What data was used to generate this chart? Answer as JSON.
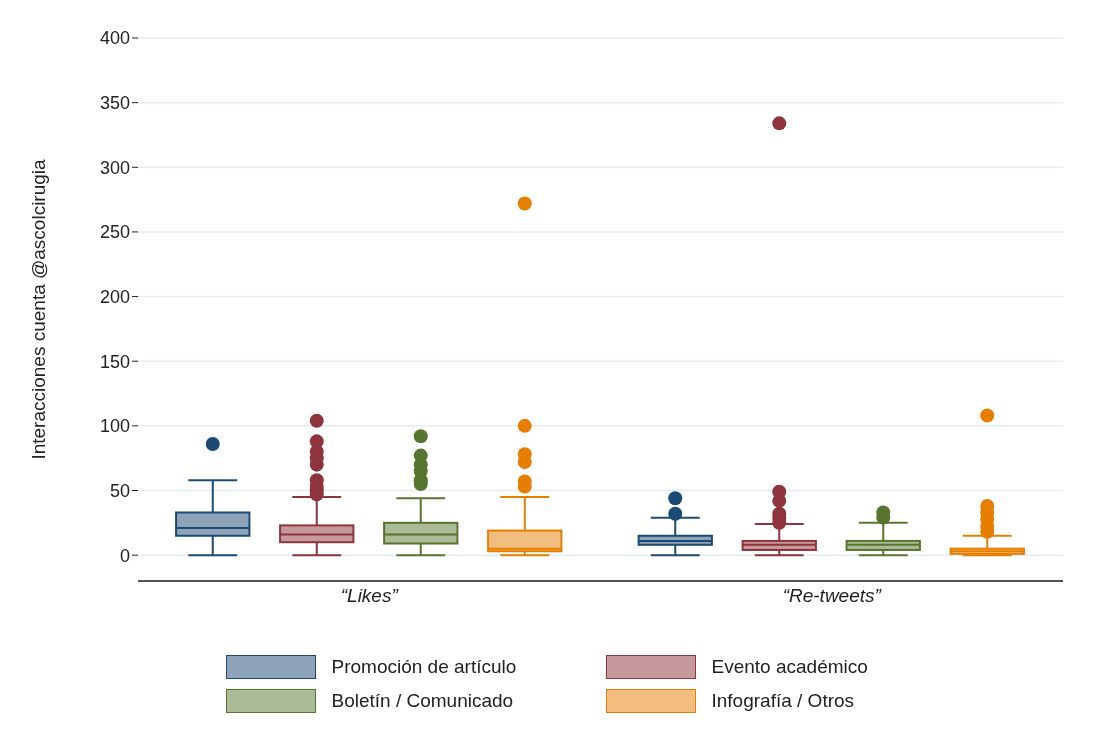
{
  "chart_data": {
    "type": "box",
    "ylabel": "Interacciones cuenta @ascolcirugia",
    "categories": [
      "“Likes”",
      "“Re-tweets”"
    ],
    "ylim": [
      -20,
      400
    ],
    "yticks": [
      0,
      50,
      100,
      150,
      200,
      250,
      300,
      350,
      400
    ],
    "grid": "y",
    "legend": "bottom",
    "series": [
      {
        "name": "Promoción de artículo",
        "color": "#1b4a72",
        "boxes": [
          {
            "low": 0,
            "q1": 15,
            "median": 21,
            "q3": 33,
            "high": 58,
            "outliers": [
              86
            ]
          },
          {
            "low": 0,
            "q1": 8,
            "median": 11,
            "q3": 15,
            "high": 29,
            "outliers": [
              32,
              44
            ]
          }
        ]
      },
      {
        "name": "Evento académico",
        "color": "#8e343c",
        "boxes": [
          {
            "low": 0,
            "q1": 10,
            "median": 16,
            "q3": 23,
            "high": 45,
            "outliers": [
              47,
              50,
              53,
              58,
              70,
              75,
              80,
              88,
              104
            ]
          },
          {
            "low": 0,
            "q1": 4,
            "median": 8,
            "q3": 11,
            "high": 24,
            "outliers": [
              25,
              29,
              32,
              42,
              49,
              334
            ]
          }
        ]
      },
      {
        "name": "Boletín / Comunicado",
        "color": "#58752f",
        "boxes": [
          {
            "low": 0,
            "q1": 9,
            "median": 16,
            "q3": 25,
            "high": 44,
            "outliers": [
              55,
              58,
              65,
              70,
              77,
              92
            ]
          },
          {
            "low": 0,
            "q1": 4,
            "median": 8,
            "q3": 11,
            "high": 25,
            "outliers": [
              29,
              33
            ]
          }
        ]
      },
      {
        "name": "Infografía / Otros",
        "color": "#e67e00",
        "boxes": [
          {
            "low": 0,
            "q1": 3,
            "median": 5,
            "q3": 19,
            "high": 45,
            "outliers": [
              53,
              57,
              72,
              78,
              100,
              272
            ]
          },
          {
            "low": 0,
            "q1": 1,
            "median": 3,
            "q3": 5,
            "high": 15,
            "outliers": [
              18,
              22,
              28,
              33,
              38,
              108
            ]
          }
        ]
      }
    ]
  }
}
